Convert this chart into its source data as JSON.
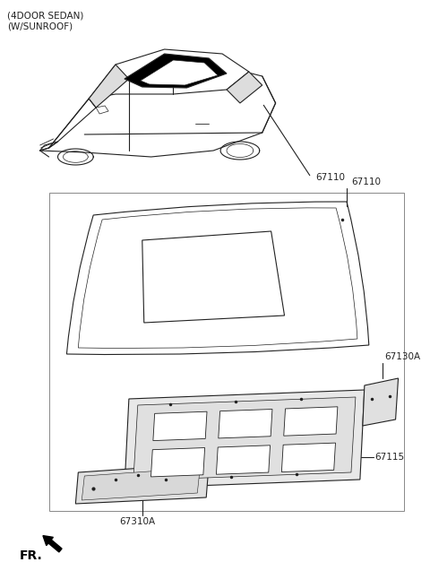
{
  "title_line1": "(4DOOR SEDAN)",
  "title_line2": "(W/SUNROOF)",
  "label_67110": "67110",
  "label_67130A": "67130A",
  "label_67115": "67115",
  "label_67310A": "67310A",
  "fr_label": "FR.",
  "bg": "#ffffff",
  "lc": "#222222",
  "font_title": 7.5,
  "font_label": 7.5
}
